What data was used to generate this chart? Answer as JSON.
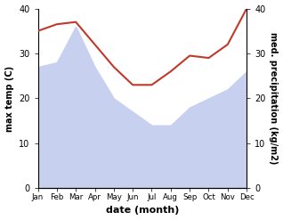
{
  "months": [
    "Jan",
    "Feb",
    "Mar",
    "Apr",
    "May",
    "Jun",
    "Jul",
    "Aug",
    "Sep",
    "Oct",
    "Nov",
    "Dec"
  ],
  "max_temp": [
    27,
    28,
    36,
    27,
    20,
    17,
    14,
    14,
    18,
    20,
    22,
    26
  ],
  "med_precip": [
    35,
    36.5,
    37,
    32,
    27,
    23,
    23,
    26,
    29.5,
    29,
    32,
    40
  ],
  "temp_color": "#c8d0f0",
  "precip_color": "#c0392b",
  "temp_ylim": [
    0,
    40
  ],
  "precip_ylim": [
    0,
    40
  ],
  "xlabel": "date (month)",
  "ylabel_left": "max temp (C)",
  "ylabel_right": "med. precipitation (kg/m2)",
  "title": ""
}
